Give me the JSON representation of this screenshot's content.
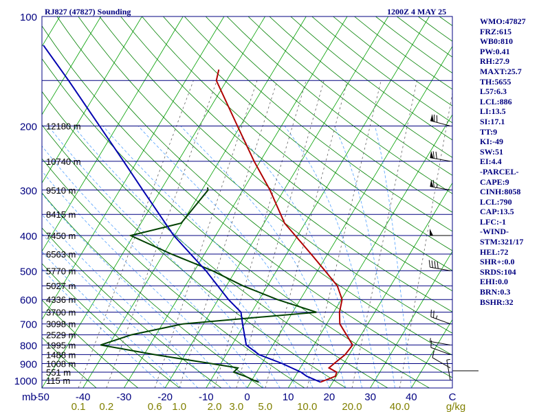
{
  "header": {
    "station": "RJ827 (47827) Sounding",
    "time": "1200Z  4 MAY 25"
  },
  "stats": [
    "WMO:47827",
    "FRZ:615",
    "WB0:810",
    "PW:0.41",
    "RH:27.9",
    "MAXT:25.7",
    "TH:5655",
    "L57:6.3",
    "LCL:886",
    "LI:13.5",
    "SI:17.1",
    "TT:9",
    "KI:-49",
    "SW:51",
    "EI:4.4",
    "-PARCEL-",
    "CAPE:9",
    "CINH:8058",
    "LCL:790",
    "CAP:13.5",
    "LFC:-1",
    "-WIND-",
    "STM:321/17",
    "HEL:72",
    "SHR+:0.0",
    "SRDS:104",
    "EHI:0.0",
    "BRN:0.3",
    "BSHR:32"
  ],
  "colors": {
    "frame": "#000080",
    "isotherm": "#00a000",
    "dry_adiabat": "#008000",
    "moist_adiabat": "#50a0ff",
    "mixing_ratio": "#606060",
    "temperature": "#b00000",
    "dewpoint": "#004000",
    "parcel": "#0000b0",
    "mixratio_label": "#808000",
    "stats": "#000080"
  },
  "chart_data": {
    "type": "line",
    "title": "RJ827 (47827) Sounding",
    "pressure_ticks": [
      "100",
      "200",
      "300",
      "400",
      "500",
      "600",
      "700",
      "800",
      "900",
      "1000"
    ],
    "pressure_values": [
      100,
      200,
      300,
      400,
      500,
      600,
      700,
      800,
      900,
      1000
    ],
    "temperature_ticks": [
      "-50",
      "-40",
      "-30",
      "-20",
      "-10",
      "0",
      "10",
      "20",
      "30",
      "40",
      "C"
    ],
    "temperature_values": [
      -50,
      -40,
      -30,
      -20,
      -10,
      0,
      10,
      20,
      30,
      40
    ],
    "y_unit_label": "mb",
    "mixing_ratio_labels": [
      "0.1",
      "0.2",
      "0.6",
      "1.0",
      "2.0",
      "3.0",
      "5.0",
      "10.0",
      "20.0",
      "40.0",
      "g/kg"
    ],
    "mixing_ratio_values": [
      0.1,
      0.2,
      0.6,
      1.0,
      2.0,
      3.0,
      5.0,
      10.0,
      20.0,
      40.0
    ],
    "height_labels": [
      {
        "p": 200,
        "label": "12180 m"
      },
      {
        "p": 250,
        "label": "10740 m"
      },
      {
        "p": 300,
        "label": "9510 m"
      },
      {
        "p": 350,
        "label": "8415 m"
      },
      {
        "p": 400,
        "label": "7450 m"
      },
      {
        "p": 450,
        "label": "6563 m"
      },
      {
        "p": 500,
        "label": "5770 m"
      },
      {
        "p": 550,
        "label": "5027 m"
      },
      {
        "p": 600,
        "label": "4336 m"
      },
      {
        "p": 650,
        "label": "3700 m"
      },
      {
        "p": 700,
        "label": "3098 m"
      },
      {
        "p": 750,
        "label": "2529 m"
      },
      {
        "p": 800,
        "label": "1995 m"
      },
      {
        "p": 850,
        "label": "1488 m"
      },
      {
        "p": 900,
        "label": "1008 m"
      },
      {
        "p": 950,
        "label": "551 m"
      },
      {
        "p": 1000,
        "label": "115 m"
      }
    ],
    "series": [
      {
        "key": "temperature",
        "points": [
          [
            1012,
            17.0
          ],
          [
            975,
            19.8
          ],
          [
            950,
            19.5
          ],
          [
            925,
            17.0
          ],
          [
            900,
            17.6
          ],
          [
            850,
            19.0
          ],
          [
            800,
            19.4
          ],
          [
            700,
            13.2
          ],
          [
            650,
            11.4
          ],
          [
            600,
            10.2
          ],
          [
            550,
            7.0
          ],
          [
            500,
            1.8
          ],
          [
            450,
            -4.0
          ],
          [
            400,
            -10.6
          ],
          [
            370,
            -15.0
          ],
          [
            300,
            -23.4
          ],
          [
            250,
            -31.5
          ],
          [
            200,
            -40.7
          ],
          [
            150,
            -52.5
          ],
          [
            140,
            -53.5
          ]
        ]
      },
      {
        "key": "dewpoint",
        "points": [
          [
            1012,
            2.0
          ],
          [
            1000,
            0.5
          ],
          [
            975,
            -2.2
          ],
          [
            950,
            -5.6
          ],
          [
            925,
            -5.2
          ],
          [
            900,
            -12.3
          ],
          [
            850,
            -27.5
          ],
          [
            800,
            -42.0
          ],
          [
            750,
            -36.0
          ],
          [
            700,
            -25.0
          ],
          [
            650,
            5.8
          ],
          [
            600,
            -5.6
          ],
          [
            550,
            -16.0
          ],
          [
            500,
            -25.6
          ],
          [
            450,
            -38.0
          ],
          [
            400,
            -50.7
          ],
          [
            370,
            -40.2
          ],
          [
            300,
            -38.5
          ],
          [
            295,
            -39.0
          ]
        ]
      },
      {
        "key": "parcel",
        "points": [
          [
            1012,
            17.0
          ],
          [
            975,
            12.8
          ],
          [
            950,
            10.8
          ],
          [
            900,
            5.0
          ],
          [
            850,
            -2.0
          ],
          [
            800,
            -6.5
          ],
          [
            700,
            -10.5
          ],
          [
            650,
            -12.6
          ],
          [
            600,
            -17.5
          ],
          [
            500,
            -27.2
          ],
          [
            400,
            -40.2
          ],
          [
            300,
            -54.4
          ],
          [
            250,
            -63.3
          ],
          [
            200,
            -74.3
          ],
          [
            150,
            -88.5
          ],
          [
            120,
            -99.8
          ]
        ]
      }
    ],
    "wind_barbs": [
      {
        "p": 1000,
        "dir": 350,
        "spd": 5
      },
      {
        "p": 925,
        "dir": 300,
        "spd": 10
      },
      {
        "p": 850,
        "dir": 290,
        "spd": 10
      },
      {
        "p": 800,
        "dir": 280,
        "spd": 5
      },
      {
        "p": 700,
        "dir": 290,
        "spd": 25
      },
      {
        "p": 500,
        "dir": 280,
        "spd": 40
      },
      {
        "p": 400,
        "dir": 270,
        "spd": 50
      },
      {
        "p": 300,
        "dir": 280,
        "spd": 65
      },
      {
        "p": 250,
        "dir": 280,
        "spd": 70
      },
      {
        "p": 200,
        "dir": 285,
        "spd": 70
      }
    ],
    "x_range": [
      -50,
      50
    ],
    "p_range": [
      100,
      1050
    ],
    "grid": true
  }
}
